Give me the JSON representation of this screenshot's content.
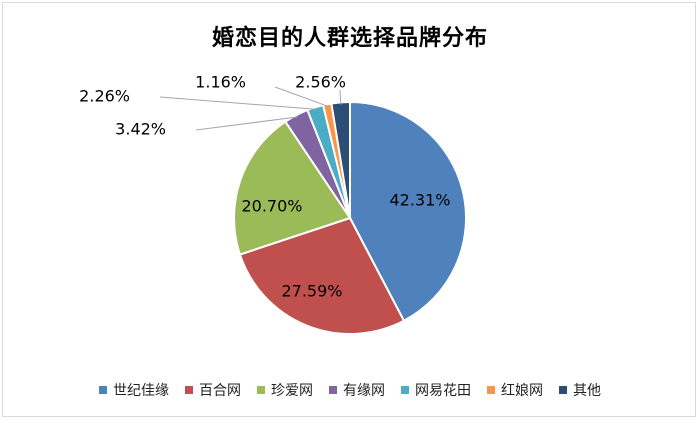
{
  "chart_data": {
    "type": "pie",
    "title": "婚恋目的人群选择品牌分布",
    "categories": [
      "世纪佳缘",
      "百合网",
      "珍爱网",
      "有缘网",
      "网易花田",
      "红娘网",
      "其他"
    ],
    "values": [
      42.31,
      27.59,
      20.7,
      3.42,
      2.26,
      1.16,
      2.56
    ],
    "value_labels": [
      "42.31%",
      "27.59%",
      "20.70%",
      "3.42%",
      "2.26%",
      "1.16%",
      "2.56%"
    ],
    "colors": [
      "#4F81BD",
      "#C0504D",
      "#9BBB59",
      "#8064A2",
      "#4BACC6",
      "#F79646",
      "#2C4D75"
    ],
    "legend_position": "bottom",
    "start_angle": "12 o'clock, clockwise"
  }
}
